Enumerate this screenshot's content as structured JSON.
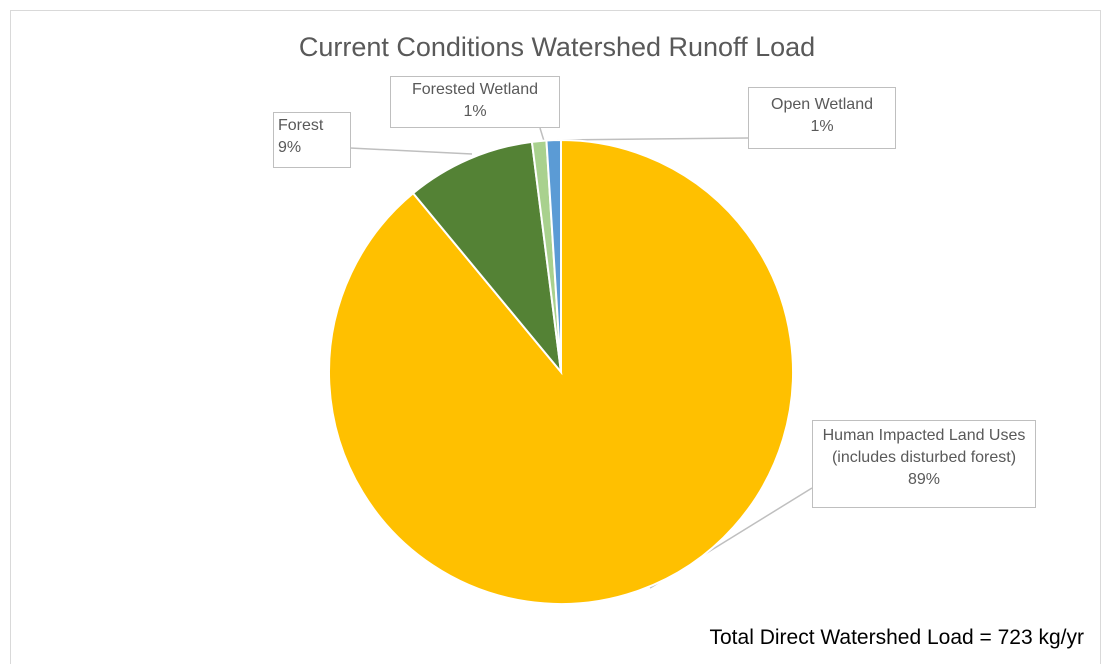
{
  "chart_data": {
    "type": "pie",
    "title": "Current Conditions Watershed Runoff Load",
    "categories": [
      "Human Impacted Land Uses (includes disturbed forest)",
      "Forest",
      "Forested Wetland",
      "Open Wetland"
    ],
    "values": [
      89,
      9,
      1,
      1
    ],
    "value_labels": [
      "89%",
      "9%",
      "1%",
      "1%"
    ],
    "colors": [
      "#FFC000",
      "#548235",
      "#A9D18E",
      "#5B9BD5"
    ],
    "annotation": "Total Direct Watershed Load = 723 kg/yr"
  }
}
